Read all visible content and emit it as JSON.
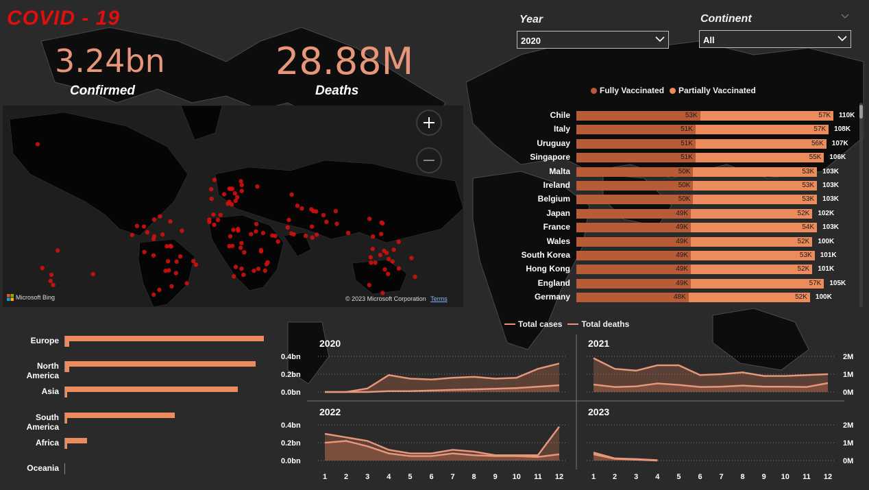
{
  "header": {
    "title": "COVID - 19"
  },
  "kpis": {
    "confirmed_value": "3.24bn",
    "confirmed_label": "Confirmed",
    "deaths_value": "28.88M",
    "deaths_label": "Deaths"
  },
  "filters": {
    "year_label": "Year",
    "year_value": "2020",
    "continent_label": "Continent",
    "continent_value": "All"
  },
  "map": {
    "attribution": "Microsoft Bing",
    "copyright": "© 2023 Microsoft Corporation",
    "terms": "Terms",
    "marker_color": "#d10f0f"
  },
  "vaccination": {
    "legend": [
      {
        "name": "Fully Vaccinated",
        "color": "#b85c38"
      },
      {
        "name": "Partially Vaccinated",
        "color": "#ec8c5c"
      }
    ],
    "axis_max": 110,
    "rows": [
      {
        "country": "Chile",
        "full": 53,
        "partial": 57,
        "full_label": "53K",
        "partial_label": "57K",
        "total_label": "110K"
      },
      {
        "country": "Italy",
        "full": 51,
        "partial": 57,
        "full_label": "51K",
        "partial_label": "57K",
        "total_label": "108K"
      },
      {
        "country": "Uruguay",
        "full": 51,
        "partial": 56,
        "full_label": "51K",
        "partial_label": "56K",
        "total_label": "107K"
      },
      {
        "country": "Singapore",
        "full": 51,
        "partial": 55,
        "full_label": "51K",
        "partial_label": "55K",
        "total_label": "106K"
      },
      {
        "country": "Malta",
        "full": 50,
        "partial": 53,
        "full_label": "50K",
        "partial_label": "53K",
        "total_label": "103K"
      },
      {
        "country": "Ireland",
        "full": 50,
        "partial": 53,
        "full_label": "50K",
        "partial_label": "53K",
        "total_label": "103K"
      },
      {
        "country": "Belgium",
        "full": 50,
        "partial": 53,
        "full_label": "50K",
        "partial_label": "53K",
        "total_label": "103K"
      },
      {
        "country": "Japan",
        "full": 49,
        "partial": 52,
        "full_label": "49K",
        "partial_label": "52K",
        "total_label": "102K"
      },
      {
        "country": "France",
        "full": 49,
        "partial": 54,
        "full_label": "49K",
        "partial_label": "54K",
        "total_label": "103K"
      },
      {
        "country": "Wales",
        "full": 49,
        "partial": 52,
        "full_label": "49K",
        "partial_label": "52K",
        "total_label": "100K"
      },
      {
        "country": "South Korea",
        "full": 49,
        "partial": 53,
        "full_label": "49K",
        "partial_label": "53K",
        "total_label": "101K"
      },
      {
        "country": "Hong Kong",
        "full": 49,
        "partial": 52,
        "full_label": "49K",
        "partial_label": "52K",
        "total_label": "101K"
      },
      {
        "country": "England",
        "full": 49,
        "partial": 57,
        "full_label": "49K",
        "partial_label": "57K",
        "total_label": "105K"
      },
      {
        "country": "Germany",
        "full": 48,
        "partial": 52,
        "full_label": "48K",
        "partial_label": "52K",
        "total_label": "100K"
      }
    ]
  },
  "continents": {
    "rows": [
      {
        "name": "Europe",
        "cases": 100,
        "deaths": 2
      },
      {
        "name": "North America",
        "cases": 96,
        "deaths": 2
      },
      {
        "name": "Asia",
        "cases": 87,
        "deaths": 1
      },
      {
        "name": "South America",
        "cases": 55,
        "deaths": 1
      },
      {
        "name": "Africa",
        "cases": 11,
        "deaths": 1
      },
      {
        "name": "Oceania",
        "cases": 0,
        "deaths": 0
      }
    ]
  },
  "chart_data": {
    "type": "area",
    "legend": [
      "Total cases",
      "Total deaths"
    ],
    "x": [
      1,
      2,
      3,
      4,
      5,
      6,
      7,
      8,
      9,
      10,
      11,
      12
    ],
    "left_axis_ticks": [
      "0.0bn",
      "0.2bn",
      "0.4bn"
    ],
    "right_axis_ticks": [
      "0M",
      "1M",
      "2M"
    ],
    "ylim_cases_bn": [
      0,
      0.4
    ],
    "ylim_deaths_M": [
      0,
      2
    ],
    "panels": [
      {
        "year": "2020",
        "cases_bn": [
          0.0,
          0.0,
          0.04,
          0.19,
          0.15,
          0.14,
          0.16,
          0.17,
          0.15,
          0.16,
          0.26,
          0.32
        ],
        "deaths_M": [
          0.0,
          0.0,
          0.0,
          0.05,
          0.05,
          0.08,
          0.12,
          0.15,
          0.18,
          0.22,
          0.3,
          0.38
        ]
      },
      {
        "year": "2021",
        "cases_bn": [
          0.38,
          0.26,
          0.24,
          0.3,
          0.3,
          0.19,
          0.2,
          0.22,
          0.18,
          0.18,
          0.19,
          0.2
        ],
        "deaths_M": [
          0.42,
          0.28,
          0.32,
          0.48,
          0.4,
          0.28,
          0.3,
          0.36,
          0.3,
          0.3,
          0.28,
          0.5
        ]
      },
      {
        "year": "2022",
        "cases_bn": [
          0.2,
          0.22,
          0.16,
          0.08,
          0.05,
          0.05,
          0.08,
          0.06,
          0.05,
          0.05,
          0.04,
          0.07
        ],
        "deaths_M": [
          1.5,
          1.3,
          1.1,
          0.6,
          0.4,
          0.4,
          0.6,
          0.5,
          0.3,
          0.3,
          0.3,
          1.9
        ]
      },
      {
        "year": "2023",
        "cases_bn": [
          0.07,
          0.02,
          0.01,
          0.0
        ],
        "deaths_M": [
          0.45,
          0.12,
          0.08,
          0.02
        ]
      }
    ]
  }
}
